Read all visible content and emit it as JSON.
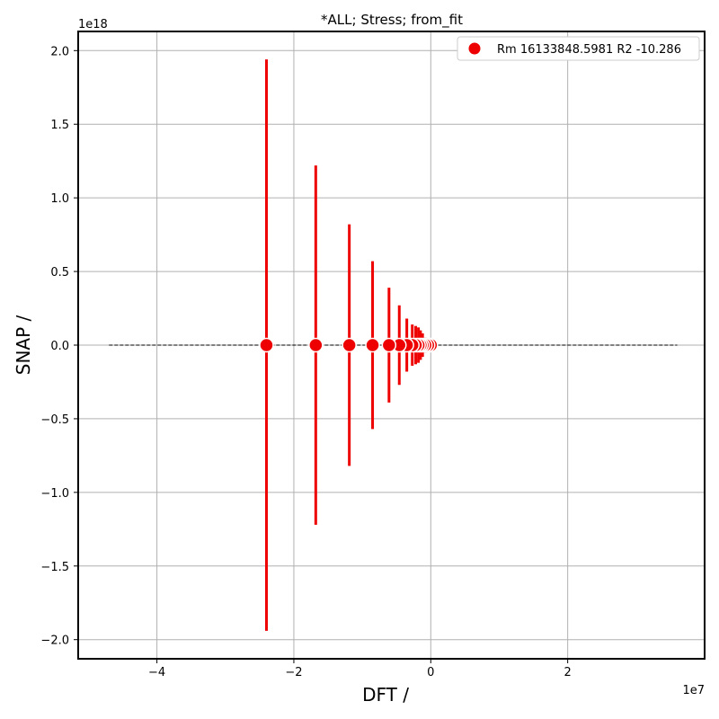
{
  "chart_data": {
    "type": "scatter",
    "title": "*ALL; Stress; from_fit",
    "xlabel": "DFT /",
    "ylabel": "SNAP /",
    "x_offset_label": "1e7",
    "y_offset_label": "1e18",
    "xlim": [
      -51500000.0,
      40000000.0
    ],
    "ylim": [
      -2.13e+18,
      2.13e+18
    ],
    "x_ticks": [
      {
        "value": -40000000.0,
        "label": "−4"
      },
      {
        "value": -20000000.0,
        "label": "−2"
      },
      {
        "value": 0,
        "label": "0"
      },
      {
        "value": 20000000.0,
        "label": "2"
      }
    ],
    "y_ticks": [
      {
        "value": -2e+18,
        "label": "−2.0"
      },
      {
        "value": -1.5e+18,
        "label": "−1.5"
      },
      {
        "value": -1e+18,
        "label": "−1.0"
      },
      {
        "value": -5e+17,
        "label": "−0.5"
      },
      {
        "value": 0.0,
        "label": "0.0"
      },
      {
        "value": 5e+17,
        "label": "0.5"
      },
      {
        "value": 1e+18,
        "label": "1.0"
      },
      {
        "value": 1.5e+18,
        "label": "1.5"
      },
      {
        "value": 2e+18,
        "label": "2.0"
      }
    ],
    "grid": true,
    "legend_position": "top-right",
    "reference_line": {
      "x": [
        -47000000.0,
        36000000.0
      ],
      "y": [
        0,
        0
      ],
      "style": "dashed",
      "color": "#000000"
    },
    "series": [
      {
        "name": "Rm 16133848.5981 R2 -10.286",
        "color": "#ee0000",
        "marker": "circle",
        "points": [
          {
            "x": -24000000.0,
            "y": 0,
            "err": 1.94e+18
          },
          {
            "x": -16800000.0,
            "y": 0,
            "err": 1.22e+18
          },
          {
            "x": -11900000.0,
            "y": 0,
            "err": 8.2e+17
          },
          {
            "x": -8500000.0,
            "y": 0,
            "err": 5.7e+17
          },
          {
            "x": -6100000.0,
            "y": 0,
            "err": 3.9e+17
          },
          {
            "x": -4600000.0,
            "y": 0,
            "err": 2.7e+17
          },
          {
            "x": -3500000.0,
            "y": 0,
            "err": 1.8e+17
          },
          {
            "x": -2700000.0,
            "y": 0,
            "err": 1.4e+17
          },
          {
            "x": -2200000.0,
            "y": 0,
            "err": 1.3e+17
          },
          {
            "x": -1800000.0,
            "y": 0,
            "err": 1.2e+17
          },
          {
            "x": -1500000.0,
            "y": 0,
            "err": 1e+17
          },
          {
            "x": -1200000.0,
            "y": 0,
            "err": 8e+16
          },
          {
            "x": -800000.0,
            "y": 0,
            "err": 5e+16
          },
          {
            "x": -400000.0,
            "y": 0,
            "err": 3e+16
          },
          {
            "x": 0.0,
            "y": 0,
            "err": 1e+16
          }
        ]
      }
    ]
  }
}
